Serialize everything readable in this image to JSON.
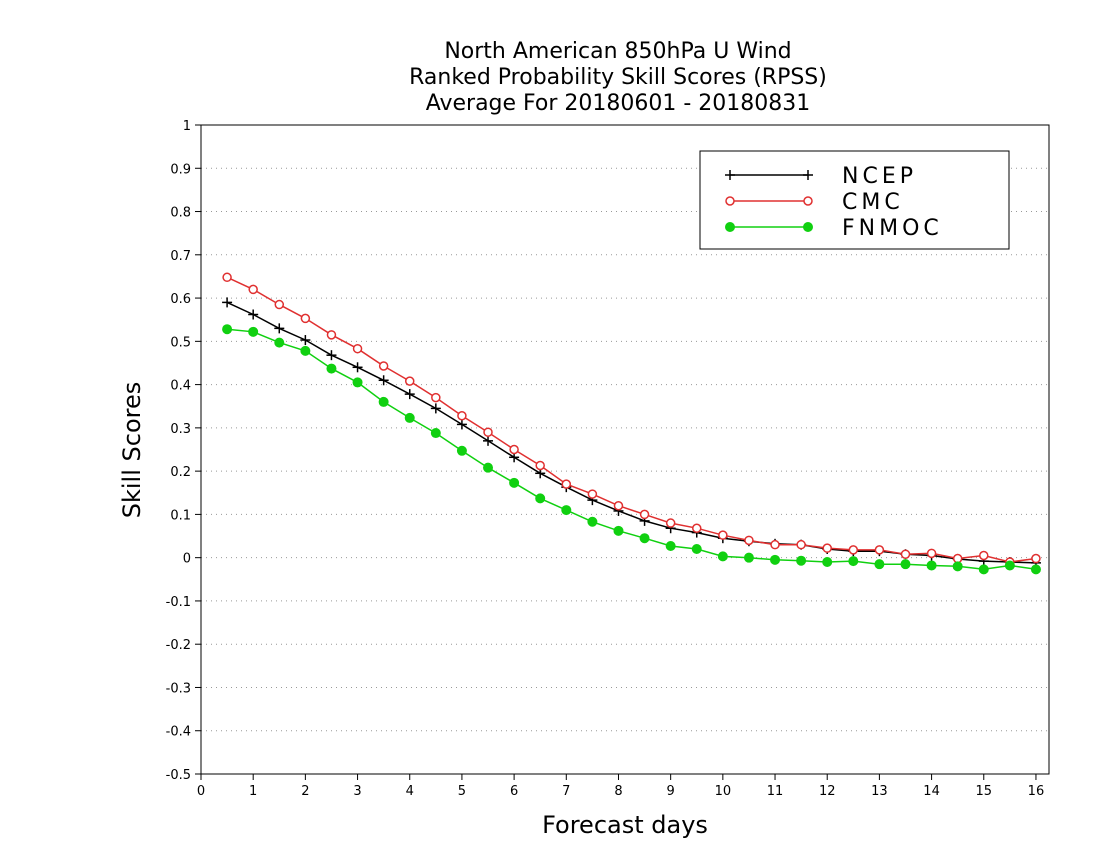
{
  "chart_data": {
    "type": "line",
    "title_lines": [
      "North American 850hPa U Wind",
      "Ranked Probability Skill Scores (RPSS)",
      "Average For 20180601 - 20180831"
    ],
    "xlabel": "Forecast days",
    "ylabel": "Skill Scores",
    "xlim": [
      0,
      16.25
    ],
    "ylim": [
      -0.5,
      1
    ],
    "x_ticks": [
      0,
      1,
      2,
      3,
      4,
      5,
      6,
      7,
      8,
      9,
      10,
      11,
      12,
      13,
      14,
      15,
      16
    ],
    "y_ticks": [
      -0.5,
      -0.4,
      -0.3,
      -0.2,
      -0.1,
      0,
      0.1,
      0.2,
      0.3,
      0.4,
      0.5,
      0.6,
      0.7,
      0.8,
      0.9,
      1
    ],
    "y_tick_labels": [
      "-0.5",
      "-0.4",
      "-0.3",
      "-0.2",
      "-0.1",
      "0",
      "0.1",
      "0.2",
      "0.3",
      "0.4",
      "0.5",
      "0.6",
      "0.7",
      "0.8",
      "0.9",
      "1"
    ],
    "grid": "horizontal-dotted",
    "legend_position": "top-right",
    "x": [
      0.5,
      1,
      1.5,
      2,
      2.5,
      3,
      3.5,
      4,
      4.5,
      5,
      5.5,
      6,
      6.5,
      7,
      7.5,
      8,
      8.5,
      9,
      9.5,
      10,
      10.5,
      11,
      11.5,
      12,
      12.5,
      13,
      13.5,
      14,
      14.5,
      15,
      15.5,
      16
    ],
    "series": [
      {
        "name": "NCEP",
        "color": "#000000",
        "marker": "plus",
        "values": [
          0.59,
          0.562,
          0.53,
          0.503,
          0.468,
          0.44,
          0.41,
          0.378,
          0.345,
          0.308,
          0.27,
          0.232,
          0.195,
          0.163,
          0.133,
          0.108,
          0.085,
          0.068,
          0.058,
          0.045,
          0.038,
          0.032,
          0.03,
          0.02,
          0.015,
          0.015,
          0.008,
          0.005,
          -0.003,
          -0.008,
          -0.01,
          -0.012
        ]
      },
      {
        "name": "CMC",
        "color": "#e03030",
        "marker": "open-circle",
        "values": [
          0.648,
          0.62,
          0.585,
          0.553,
          0.515,
          0.483,
          0.443,
          0.408,
          0.37,
          0.328,
          0.29,
          0.25,
          0.213,
          0.17,
          0.147,
          0.12,
          0.1,
          0.08,
          0.068,
          0.052,
          0.04,
          0.03,
          0.03,
          0.022,
          0.018,
          0.018,
          0.008,
          0.01,
          -0.002,
          0.005,
          -0.01,
          -0.002
        ]
      },
      {
        "name": "FNMOC",
        "color": "#10d010",
        "marker": "filled-circle",
        "values": [
          0.528,
          0.522,
          0.497,
          0.478,
          0.437,
          0.405,
          0.36,
          0.323,
          0.288,
          0.247,
          0.208,
          0.173,
          0.137,
          0.11,
          0.083,
          0.062,
          0.045,
          0.027,
          0.02,
          0.003,
          0.0,
          -0.005,
          -0.007,
          -0.01,
          -0.008,
          -0.015,
          -0.015,
          -0.018,
          -0.02,
          -0.027,
          -0.018,
          -0.027
        ]
      }
    ]
  }
}
